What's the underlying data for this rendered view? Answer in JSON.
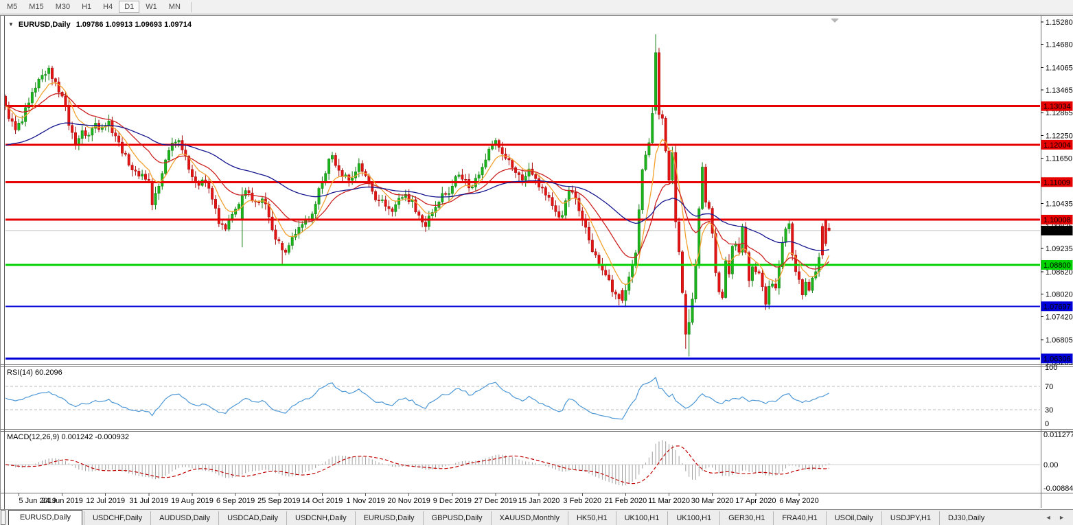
{
  "toolbar": {
    "timeframes": [
      "M5",
      "M15",
      "M30",
      "H1",
      "H4",
      "D1",
      "W1",
      "MN"
    ],
    "active": "D1"
  },
  "title": {
    "symbol": "EURUSD,Daily",
    "ohlc": "1.09786 1.09913 1.09693 1.09714"
  },
  "indicators": {
    "rsi_label": "RSI(14) 60.2096",
    "macd_label": "MACD(12,26,9) 0.001242 -0.000932"
  },
  "price_axis": {
    "ticks": [
      1.1528,
      1.1468,
      1.14065,
      1.13465,
      1.12865,
      1.1225,
      1.1165,
      1.10435,
      1.09835,
      1.09235,
      1.0862,
      1.0802,
      1.0742,
      1.06805,
      1.06205
    ],
    "current_price_badge": "1.09714"
  },
  "rsi_axis_labels": [
    "100",
    "70",
    "30",
    "0"
  ],
  "macd_axis_labels": [
    "0.011277",
    "0.00",
    "-0.008845"
  ],
  "dates": [
    "5 Jun 2019",
    "24 Jun 2019",
    "12 Jul 2019",
    "31 Jul 2019",
    "19 Aug 2019",
    "6 Sep 2019",
    "25 Sep 2019",
    "14 Oct 2019",
    "1 Nov 2019",
    "20 Nov 2019",
    "9 Dec 2019",
    "27 Dec 2019",
    "15 Jan 2020",
    "3 Feb 2020",
    "21 Feb 2020",
    "11 Mar 2020",
    "30 Mar 2020",
    "17 Apr 2020",
    "6 May 2020"
  ],
  "tabs": {
    "items": [
      "EURUSD,Daily",
      "USDCHF,Daily",
      "AUDUSD,Daily",
      "USDCAD,Daily",
      "USDCNH,Daily",
      "EURUSD,Daily",
      "GBPUSD,Daily",
      "XAUUSD,Monthly",
      "HK50,H1",
      "UK100,H1",
      "UK100,H1",
      "GER30,H1",
      "FRA40,H1",
      "USOil,Daily",
      "USDJPY,H1",
      "DJ30,Daily"
    ],
    "active_index": 0,
    "arrows": "◄ ►"
  },
  "colors": {
    "bull_fill": "#1cb41c",
    "bull_stroke": "#0e7c0e",
    "bear_fill": "#e41414",
    "bear_stroke": "#a40a0a",
    "level_red": "#e60000",
    "level_green": "#00d300",
    "level_blue": "#0000d9",
    "current_line": "#bcbcbc",
    "ma_fast": "#f2a12f",
    "ma_medium": "#cc2222",
    "ma_slow": "#16168f",
    "rsi_line": "#4c97d6",
    "macd_hist": "#9e9e9e",
    "macd_signal": "#c00000",
    "badge_text_light": "#ffffff",
    "badge_text_dark": "#000000"
  },
  "chart_data": {
    "type": "candlestick",
    "symbol": "EURUSD",
    "timeframe": "Daily",
    "last_ohlc": {
      "open": 1.09786,
      "high": 1.09913,
      "low": 1.09693,
      "close": 1.09714
    },
    "bars": 248,
    "bars_per_label": 13,
    "first_label_bar": 4,
    "visible_price_range": [
      1.0615,
      1.1541
    ],
    "close_anchors": [
      [
        0,
        1.1305
      ],
      [
        1,
        1.127
      ],
      [
        3,
        1.124
      ],
      [
        5,
        1.1262
      ],
      [
        7,
        1.1312
      ],
      [
        9,
        1.1352
      ],
      [
        11,
        1.1386
      ],
      [
        13,
        1.1405
      ],
      [
        15,
        1.1368
      ],
      [
        17,
        1.133
      ],
      [
        19,
        1.1252
      ],
      [
        21,
        1.1202
      ],
      [
        23,
        1.1238
      ],
      [
        25,
        1.1226
      ],
      [
        27,
        1.1258
      ],
      [
        29,
        1.1248
      ],
      [
        31,
        1.1264
      ],
      [
        33,
        1.1224
      ],
      [
        35,
        1.1178
      ],
      [
        37,
        1.1146
      ],
      [
        39,
        1.113
      ],
      [
        41,
        1.1122
      ],
      [
        43,
        1.1105
      ],
      [
        44,
        1.104
      ],
      [
        46,
        1.109
      ],
      [
        48,
        1.116
      ],
      [
        50,
        1.1205
      ],
      [
        52,
        1.1212
      ],
      [
        54,
        1.117
      ],
      [
        56,
        1.1115
      ],
      [
        58,
        1.1092
      ],
      [
        60,
        1.1102
      ],
      [
        62,
        1.1055
      ],
      [
        64,
        1.099
      ],
      [
        66,
        1.0975
      ],
      [
        68,
        1.1015
      ],
      [
        70,
        1.1042
      ],
      [
        71,
        1.1064
      ],
      [
        73,
        1.1072
      ],
      [
        75,
        1.1048
      ],
      [
        77,
        1.1056
      ],
      [
        79,
        1.1008
      ],
      [
        81,
        1.0948
      ],
      [
        83,
        1.092
      ],
      [
        85,
        1.0932
      ],
      [
        87,
        1.0962
      ],
      [
        89,
        1.0988
      ],
      [
        91,
        1.1002
      ],
      [
        93,
        1.1042
      ],
      [
        95,
        1.1102
      ],
      [
        97,
        1.1162
      ],
      [
        98,
        1.1172
      ],
      [
        100,
        1.1132
      ],
      [
        102,
        1.112
      ],
      [
        104,
        1.1112
      ],
      [
        106,
        1.115
      ],
      [
        108,
        1.1118
      ],
      [
        110,
        1.1076
      ],
      [
        112,
        1.1052
      ],
      [
        114,
        1.1036
      ],
      [
        116,
        1.1022
      ],
      [
        118,
        1.1058
      ],
      [
        120,
        1.1068
      ],
      [
        122,
        1.1054
      ],
      [
        124,
        1.1012
      ],
      [
        126,
        1.0982
      ],
      [
        128,
        1.102
      ],
      [
        130,
        1.1048
      ],
      [
        132,
        1.1068
      ],
      [
        134,
        1.109
      ],
      [
        136,
        1.112
      ],
      [
        138,
        1.1108
      ],
      [
        140,
        1.1088
      ],
      [
        142,
        1.112
      ],
      [
        144,
        1.116
      ],
      [
        146,
        1.1198
      ],
      [
        147,
        1.1212
      ],
      [
        149,
        1.1176
      ],
      [
        151,
        1.116
      ],
      [
        153,
        1.1126
      ],
      [
        155,
        1.1106
      ],
      [
        157,
        1.1136
      ],
      [
        159,
        1.111
      ],
      [
        161,
        1.1086
      ],
      [
        163,
        1.106
      ],
      [
        165,
        1.1022
      ],
      [
        167,
        1.1012
      ],
      [
        169,
        1.1078
      ],
      [
        171,
        1.1058
      ],
      [
        173,
        1.1002
      ],
      [
        175,
        1.0946
      ],
      [
        177,
        1.0906
      ],
      [
        179,
        1.0866
      ],
      [
        181,
        1.084
      ],
      [
        183,
        1.0802
      ],
      [
        185,
        1.0785
      ],
      [
        186,
        1.0812
      ],
      [
        187,
        1.0848
      ],
      [
        188,
        1.0882
      ],
      [
        189,
        1.0912
      ],
      [
        190,
        1.1027
      ],
      [
        191,
        1.1134
      ],
      [
        192,
        1.1173
      ],
      [
        193,
        1.1206
      ],
      [
        194,
        1.1284
      ],
      [
        195,
        1.1446
      ],
      [
        196,
        1.1281
      ],
      [
        197,
        1.1271
      ],
      [
        198,
        1.1184
      ],
      [
        199,
        1.1106
      ],
      [
        200,
        1.118
      ],
      [
        201,
        1.0995
      ],
      [
        202,
        1.0915
      ],
      [
        203,
        1.0806
      ],
      [
        204,
        1.0695
      ],
      [
        205,
        1.0727
      ],
      [
        206,
        1.0789
      ],
      [
        207,
        1.088
      ],
      [
        208,
        1.103
      ],
      [
        209,
        1.1141
      ],
      [
        210,
        1.1047
      ],
      [
        211,
        1.1031
      ],
      [
        212,
        1.0964
      ],
      [
        213,
        1.0859
      ],
      [
        214,
        1.0808
      ],
      [
        215,
        1.0793
      ],
      [
        216,
        1.0891
      ],
      [
        217,
        1.0856
      ],
      [
        218,
        1.093
      ],
      [
        219,
        1.0936
      ],
      [
        220,
        1.0914
      ],
      [
        221,
        1.0981
      ],
      [
        222,
        1.0913
      ],
      [
        223,
        1.0838
      ],
      [
        224,
        1.0875
      ],
      [
        225,
        1.0862
      ],
      [
        226,
        1.0858
      ],
      [
        227,
        1.0822
      ],
      [
        228,
        1.0775
      ],
      [
        229,
        1.0823
      ],
      [
        230,
        1.0829
      ],
      [
        231,
        1.0818
      ],
      [
        232,
        1.0875
      ],
      [
        233,
        1.094
      ],
      [
        234,
        1.0976
      ],
      [
        235,
        1.099
      ],
      [
        236,
        1.0906
      ],
      [
        237,
        1.0862
      ],
      [
        238,
        1.0841
      ],
      [
        239,
        1.08
      ],
      [
        240,
        1.0834
      ],
      [
        241,
        1.0812
      ],
      [
        242,
        1.0845
      ],
      [
        243,
        1.0862
      ],
      [
        244,
        1.09
      ],
      [
        245,
        1.0906
      ],
      [
        246,
        1.0937
      ],
      [
        247,
        1.09714
      ]
    ],
    "ohlc_overrides": {
      "13": [
        1.139,
        1.1412,
        1.1372,
        1.1405
      ],
      "44": [
        1.1103,
        1.111,
        1.1026,
        1.104
      ],
      "71": [
        1.1002,
        1.1087,
        1.0927,
        1.1064
      ],
      "83": [
        1.0938,
        1.0944,
        1.0879,
        1.092
      ],
      "185": [
        1.0812,
        1.0818,
        1.0778,
        1.0785
      ],
      "195": [
        1.1292,
        1.1495,
        1.1282,
        1.1446
      ],
      "204": [
        1.0802,
        1.0812,
        1.0656,
        1.0695
      ],
      "205": [
        1.0695,
        1.0762,
        1.0636,
        1.0727
      ],
      "245": [
        1.0983,
        1.0991,
        1.0896,
        1.0906
      ],
      "246": [
        1.0998,
        1.10008,
        1.093,
        1.0937
      ],
      "247": [
        1.09786,
        1.09913,
        1.09693,
        1.09714
      ]
    },
    "moving_averages": [
      {
        "name": "fast",
        "type": "EMA",
        "period": 8
      },
      {
        "name": "medium",
        "type": "EMA",
        "period": 21
      },
      {
        "name": "slow",
        "type": "EMA",
        "period": 60,
        "seed": 1.1195
      }
    ],
    "horizontal_levels": [
      {
        "price": 1.13034,
        "kind": "resistance",
        "color_key": "level_red",
        "width": 3
      },
      {
        "price": 1.12004,
        "kind": "resistance",
        "color_key": "level_red",
        "width": 3
      },
      {
        "price": 1.11009,
        "kind": "resistance",
        "color_key": "level_red",
        "width": 3
      },
      {
        "price": 1.10008,
        "kind": "resistance",
        "color_key": "level_red",
        "width": 3
      },
      {
        "price": 1.088,
        "kind": "support",
        "color_key": "level_green",
        "width": 3
      },
      {
        "price": 1.07697,
        "kind": "support",
        "color_key": "level_blue",
        "width": 2
      },
      {
        "price": 1.06306,
        "kind": "support",
        "color_key": "level_blue",
        "width": 3
      }
    ],
    "current_price": 1.09714,
    "rsi": {
      "period": 14,
      "value": 60.2096,
      "levels": [
        70,
        30
      ],
      "scale": [
        0,
        100
      ]
    },
    "macd": {
      "fast": 12,
      "slow": 26,
      "signal_period": 9,
      "main": 0.001242,
      "signal": -0.000932,
      "scale_top": 0.011277,
      "scale_bottom": -0.008845
    }
  }
}
